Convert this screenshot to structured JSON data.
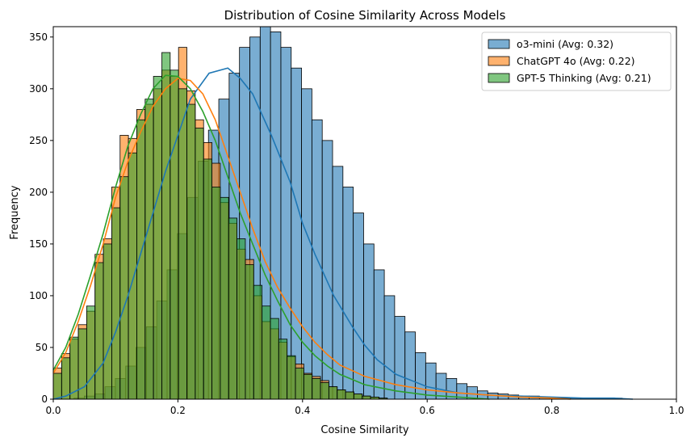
{
  "chart_data": {
    "type": "histogram",
    "title": "Distribution of Cosine Similarity Across Models",
    "xlabel": "Cosine Similarity",
    "ylabel": "Frequency",
    "xlim": [
      0.0,
      1.0
    ],
    "ylim": [
      0,
      360
    ],
    "x_ticks": [
      "0.0",
      "0.2",
      "0.4",
      "0.6",
      "0.8",
      "1.0"
    ],
    "y_ticks": [
      "0",
      "50",
      "100",
      "150",
      "200",
      "250",
      "300",
      "350"
    ],
    "legend_position": "top-right",
    "grid": false,
    "kde": true,
    "series": [
      {
        "name": "o3-mini (Avg: 0.32)",
        "color": "#1f77b4",
        "bin_start": 0.0,
        "bin_width": 0.0166,
        "values": [
          0,
          0,
          1,
          3,
          5,
          12,
          20,
          32,
          50,
          70,
          95,
          125,
          160,
          195,
          230,
          260,
          290,
          315,
          340,
          350,
          360,
          355,
          340,
          320,
          300,
          270,
          250,
          225,
          205,
          180,
          150,
          125,
          100,
          80,
          65,
          45,
          35,
          25,
          20,
          15,
          12,
          8,
          6,
          5,
          4,
          3,
          3,
          2,
          2,
          1,
          1,
          1,
          1,
          1,
          1
        ]
      },
      {
        "name": "ChatGPT 4o (Avg: 0.22)",
        "color": "#ff7f0e",
        "bin_start": 0.0,
        "bin_width": 0.0134,
        "values": [
          30,
          44,
          58,
          72,
          85,
          140,
          155,
          205,
          255,
          252,
          280,
          285,
          300,
          318,
          312,
          340,
          298,
          270,
          248,
          228,
          190,
          170,
          145,
          135,
          100,
          75,
          68,
          55,
          41,
          34,
          25,
          22,
          18,
          12,
          9,
          7,
          5,
          3,
          2,
          1
        ]
      },
      {
        "name": "GPT-5 Thinking (Avg: 0.21)",
        "color": "#2ca02c",
        "bin_start": 0.0,
        "bin_width": 0.0134,
        "values": [
          25,
          40,
          60,
          68,
          90,
          132,
          150,
          185,
          215,
          238,
          270,
          290,
          312,
          335,
          318,
          300,
          285,
          262,
          232,
          205,
          195,
          175,
          155,
          130,
          110,
          90,
          78,
          58,
          42,
          30,
          24,
          20,
          16,
          12,
          9,
          7,
          5,
          3,
          2,
          1
        ]
      }
    ],
    "kde_series": [
      {
        "name": "o3-mini (Avg: 0.32)",
        "x": [
          0.0,
          0.02,
          0.05,
          0.08,
          0.1,
          0.12,
          0.15,
          0.18,
          0.2,
          0.22,
          0.25,
          0.28,
          0.3,
          0.32,
          0.35,
          0.38,
          0.4,
          0.42,
          0.45,
          0.48,
          0.5,
          0.52,
          0.55,
          0.6,
          0.65,
          0.7,
          0.75,
          0.8,
          0.85,
          0.9,
          0.93
        ],
        "y": [
          0,
          3,
          12,
          35,
          65,
          100,
          160,
          220,
          255,
          290,
          315,
          320,
          310,
          295,
          255,
          210,
          170,
          140,
          100,
          70,
          52,
          38,
          24,
          12,
          6,
          4,
          3,
          2,
          1,
          1,
          0
        ]
      },
      {
        "name": "ChatGPT 4o (Avg: 0.22)",
        "x": [
          0.0,
          0.02,
          0.04,
          0.06,
          0.08,
          0.1,
          0.12,
          0.14,
          0.16,
          0.18,
          0.2,
          0.22,
          0.24,
          0.26,
          0.28,
          0.3,
          0.32,
          0.34,
          0.36,
          0.38,
          0.4,
          0.42,
          0.44,
          0.46,
          0.5,
          0.55,
          0.6,
          0.65,
          0.7,
          0.75,
          0.8,
          0.83
        ],
        "y": [
          25,
          45,
          75,
          110,
          150,
          195,
          230,
          258,
          283,
          300,
          310,
          308,
          295,
          270,
          235,
          200,
          165,
          133,
          108,
          88,
          70,
          55,
          43,
          33,
          22,
          14,
          9,
          6,
          4,
          2,
          1,
          0
        ]
      },
      {
        "name": "GPT-5 Thinking (Avg: 0.21)",
        "x": [
          0.0,
          0.02,
          0.04,
          0.06,
          0.08,
          0.1,
          0.12,
          0.14,
          0.16,
          0.18,
          0.2,
          0.22,
          0.24,
          0.26,
          0.28,
          0.3,
          0.32,
          0.34,
          0.36,
          0.38,
          0.4,
          0.42,
          0.44,
          0.46,
          0.5,
          0.55,
          0.6,
          0.65,
          0.7
        ],
        "y": [
          28,
          50,
          82,
          120,
          160,
          205,
          245,
          275,
          300,
          313,
          312,
          300,
          278,
          250,
          215,
          180,
          150,
          120,
          95,
          72,
          55,
          42,
          32,
          24,
          14,
          8,
          4,
          2,
          0
        ]
      }
    ]
  }
}
